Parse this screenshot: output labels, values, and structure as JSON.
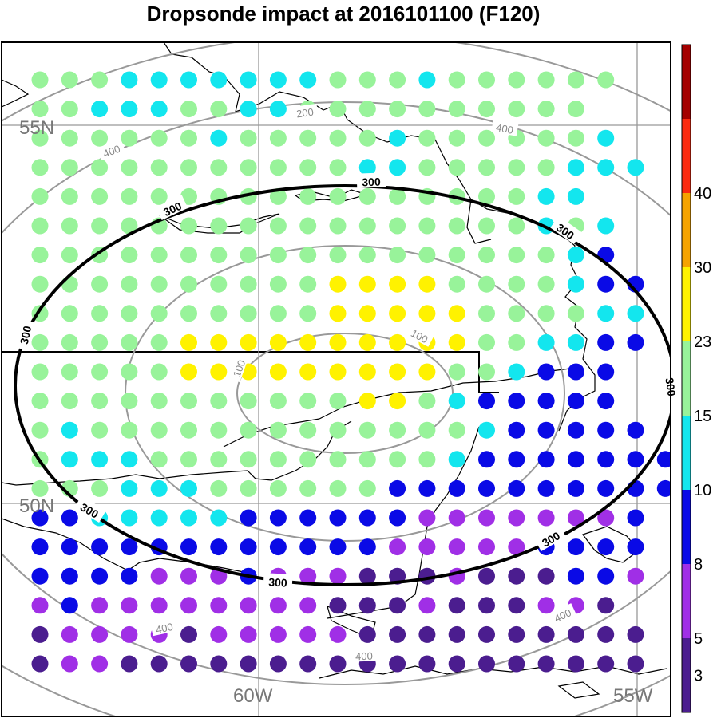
{
  "title": "Dropsonde impact at 2016101100 (F120)",
  "grid_labels": {
    "lat_55": "55N",
    "lat_50": "50N",
    "lon_60": "60W",
    "lon_55": "55W"
  },
  "contour_labels": {
    "c100": "100",
    "c200": "200",
    "c300": "300",
    "c400": "400"
  },
  "colorbar": {
    "labels": [
      "3",
      "5",
      "8",
      "10",
      "15",
      "23",
      "30",
      "40"
    ],
    "colors": [
      "#4b1d8f",
      "#a02fe6",
      "#0a0ae6",
      "#13e6ee",
      "#98f39a",
      "#fff200",
      "#f5a300",
      "#fb2a0f",
      "#a40000"
    ]
  },
  "category_colors": {
    "d": "#4b1d8f",
    "p": "#a02fe6",
    "b": "#0a0ae6",
    "c": "#13e6ee",
    "g": "#98f39a",
    "y": "#fff200"
  },
  "dot_grid": [
    "gggcccccccgggcgggggg",
    "ggcccggccgggggggggg",
    "ggggggcgggggcggggggc",
    "gggggggggggccgggggccc",
    "gggggggggggggggggcc",
    "gggggggggggggggggcgc",
    "ggggggggggggggggggcb",
    "ggggggggggyyyyggggcbb",
    "ggggggggggyyyyyggggcc",
    "gggggyyyyyyyyyyggccbb",
    "gggggyyyyyyyyyggcbbb",
    "gggggggggggyygcbbbbb",
    "gcgggggggggggggcbbbbb",
    "gcccggggggggggcbbbbbbb",
    "gggcccggggggbbbbbbbbbb",
    "bbcccccbbbbbbpppppppb",
    "bbbbbbbbbbbbpppppbbbb",
    "bbbbpppbpppdddpdddbbp",
    "pbppppppppdddpdddppd",
    "dppppdpppppdddddddddd",
    "dppdddddddddddddddddd"
  ]
}
